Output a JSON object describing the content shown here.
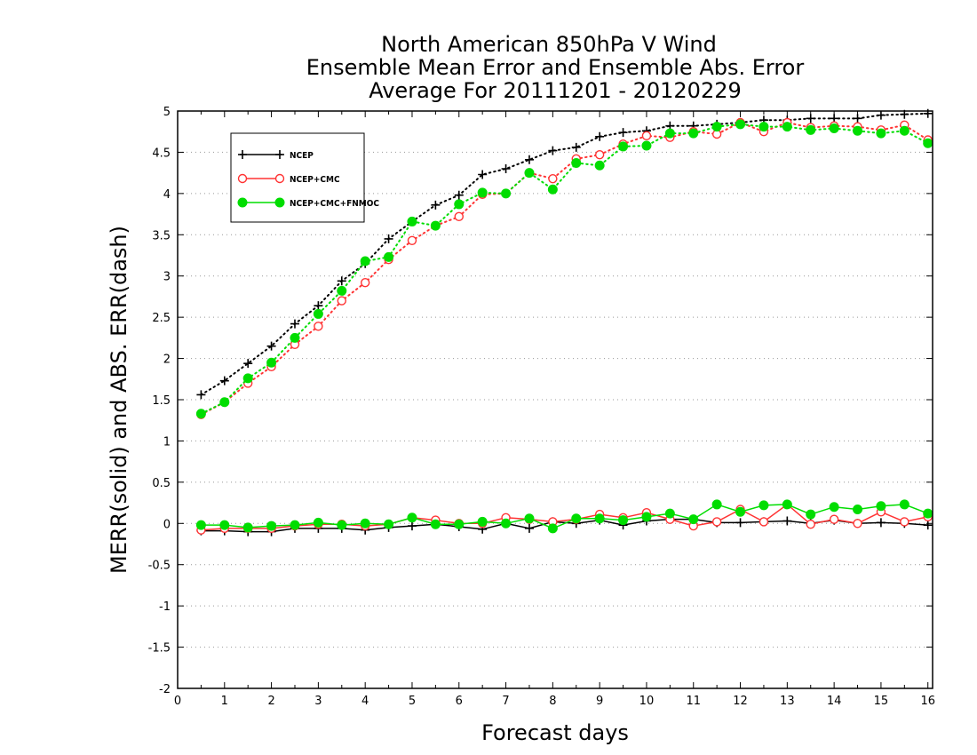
{
  "chart_data": {
    "type": "line",
    "title": [
      "North American 850hPa V Wind",
      "Ensemble Mean Error and Ensemble Abs. Error",
      "Average For 20111201 - 20120229"
    ],
    "xlabel": "Forecast days",
    "ylabel": "MERR(solid) and ABS. ERR(dash)",
    "xlim": [
      0,
      16.1
    ],
    "ylim": [
      -2,
      5
    ],
    "xticks": [
      0,
      1,
      2,
      3,
      4,
      5,
      6,
      7,
      8,
      9,
      10,
      11,
      12,
      13,
      14,
      15,
      16
    ],
    "yticks": [
      -2,
      -1.5,
      -1,
      -0.5,
      0,
      0.5,
      1,
      1.5,
      2,
      2.5,
      3,
      3.5,
      4,
      4.5,
      5
    ],
    "ytick_labels": [
      "-2",
      "-1.5",
      "-1",
      "-0.5",
      "0",
      "0.5",
      "1",
      "1.5",
      "2",
      "2.5",
      "3",
      "3.5",
      "4",
      "4.5",
      "5"
    ],
    "grid": "horizontal dotted",
    "legend_position": "top-left",
    "x": [
      0.5,
      1,
      1.5,
      2,
      2.5,
      3,
      3.5,
      4,
      4.5,
      5,
      5.5,
      6,
      6.5,
      7,
      7.5,
      8,
      8.5,
      9,
      9.5,
      10,
      10.5,
      11,
      11.5,
      12,
      12.5,
      13,
      13.5,
      14,
      14.5,
      15,
      15.5,
      16
    ],
    "series": [
      {
        "name": "NCEP",
        "color": "#000000",
        "marker": "plus",
        "abs_error": [
          1.56,
          1.73,
          1.94,
          2.15,
          2.42,
          2.64,
          2.94,
          3.15,
          3.45,
          3.66,
          3.86,
          3.98,
          4.23,
          4.3,
          4.41,
          4.52,
          4.56,
          4.69,
          4.74,
          4.76,
          4.82,
          4.82,
          4.84,
          4.86,
          4.89,
          4.89,
          4.91,
          4.91,
          4.91,
          4.95,
          4.96,
          4.97
        ],
        "mean_error": [
          -0.09,
          -0.09,
          -0.1,
          -0.1,
          -0.06,
          -0.06,
          -0.06,
          -0.08,
          -0.05,
          -0.03,
          -0.01,
          -0.04,
          -0.07,
          0.0,
          -0.06,
          0.02,
          0.0,
          0.04,
          -0.02,
          0.03,
          0.05,
          0.05,
          0.01,
          0.01,
          0.02,
          0.03,
          0.0,
          0.04,
          0.0,
          0.01,
          0.0,
          -0.02
        ]
      },
      {
        "name": "NCEP+CMC",
        "color": "#ff3333",
        "marker": "open-circle",
        "abs_error": [
          1.32,
          1.47,
          1.7,
          1.9,
          2.17,
          2.39,
          2.7,
          2.92,
          3.2,
          3.43,
          3.61,
          3.72,
          3.99,
          4.0,
          4.25,
          4.18,
          4.42,
          4.47,
          4.6,
          4.7,
          4.68,
          4.75,
          4.72,
          4.86,
          4.75,
          4.86,
          4.8,
          4.82,
          4.81,
          4.77,
          4.83,
          4.65
        ],
        "mean_error": [
          -0.08,
          -0.06,
          -0.06,
          -0.06,
          -0.03,
          -0.01,
          -0.01,
          -0.03,
          -0.01,
          0.07,
          0.04,
          0.0,
          0.0,
          0.07,
          0.05,
          0.02,
          0.05,
          0.11,
          0.07,
          0.13,
          0.05,
          -0.03,
          0.02,
          0.17,
          0.02,
          0.23,
          -0.01,
          0.05,
          0.0,
          0.14,
          0.02,
          0.08
        ]
      },
      {
        "name": "NCEP+CMC+FNMOC",
        "color": "#00dd00",
        "marker": "filled-circle",
        "abs_error": [
          1.33,
          1.47,
          1.76,
          1.95,
          2.25,
          2.54,
          2.82,
          3.18,
          3.23,
          3.66,
          3.61,
          3.87,
          4.01,
          4.0,
          4.25,
          4.05,
          4.37,
          4.34,
          4.57,
          4.58,
          4.73,
          4.73,
          4.81,
          4.84,
          4.81,
          4.81,
          4.77,
          4.79,
          4.76,
          4.73,
          4.76,
          4.61
        ],
        "mean_error": [
          -0.02,
          -0.02,
          -0.05,
          -0.03,
          -0.02,
          0.01,
          -0.02,
          0.0,
          -0.01,
          0.07,
          -0.01,
          -0.01,
          0.02,
          0.0,
          0.06,
          -0.06,
          0.06,
          0.06,
          0.04,
          0.08,
          0.12,
          0.05,
          0.23,
          0.14,
          0.22,
          0.23,
          0.11,
          0.2,
          0.17,
          0.21,
          0.23,
          0.12
        ]
      }
    ]
  }
}
